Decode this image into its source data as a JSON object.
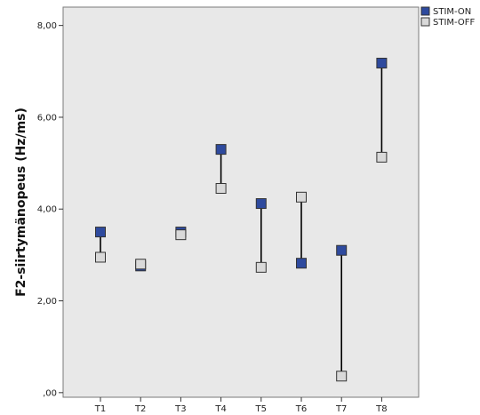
{
  "chart_data": {
    "type": "scatter",
    "ylabel": "F2-siirtymänopeus (Hz/ms)",
    "xlabel": "",
    "title": "",
    "categories": [
      "T1",
      "T2",
      "T3",
      "T4",
      "T5",
      "T6",
      "T7",
      "T8"
    ],
    "ylim": [
      -0.1,
      8.4
    ],
    "yticks": [
      0,
      2,
      4,
      6,
      8
    ],
    "ytick_labels": [
      ",00",
      "2,00",
      "4,00",
      "6,00",
      "8,00"
    ],
    "grid": false,
    "legend_position": "top-right",
    "series": [
      {
        "name": "STIM-ON",
        "color": "#2e4a9e",
        "values": [
          3.5,
          2.76,
          3.5,
          5.3,
          4.12,
          2.82,
          3.1,
          7.18
        ]
      },
      {
        "name": "STIM-OFF",
        "color": "#d9d9d9",
        "values": [
          2.95,
          2.8,
          3.44,
          4.45,
          2.73,
          4.26,
          0.36,
          5.13
        ]
      }
    ],
    "plot_background": "#e8e8e8"
  }
}
